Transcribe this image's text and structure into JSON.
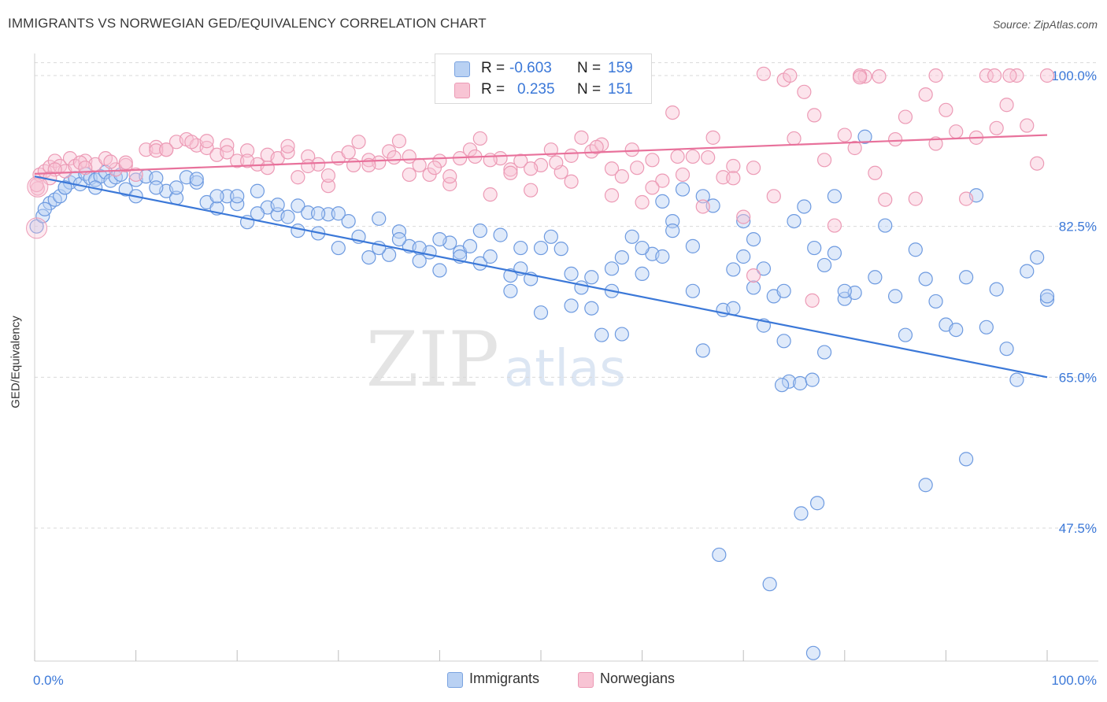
{
  "title": "IMMIGRANTS VS NORWEGIAN GED/EQUIVALENCY CORRELATION CHART",
  "source": "Source: ZipAtlas.com",
  "watermark": {
    "zip": "ZIP",
    "atlas": "atlas"
  },
  "legend": {
    "r_label": "R =",
    "n_label": "N =",
    "rows": [
      {
        "r": "-0.603",
        "n": "159",
        "color": "#3b78d8",
        "fill": "#b9d1f3"
      },
      {
        "r": "0.235",
        "n": "151",
        "color": "#e8719b",
        "fill": "#f8c4d4"
      }
    ]
  },
  "bottom_legend": [
    {
      "label": "Immigrants",
      "fill": "#b9d1f3",
      "stroke": "#7aa3e0"
    },
    {
      "label": "Norwegians",
      "fill": "#f8c4d4",
      "stroke": "#ec9ab5"
    }
  ],
  "chart_data": {
    "type": "scatter",
    "title": "IMMIGRANTS VS NORWEGIAN GED/EQUIVALENCY CORRELATION CHART",
    "xlabel": "",
    "ylabel": "GED/Equivalency",
    "xlim": [
      0,
      100
    ],
    "ylim": [
      31,
      102
    ],
    "x_tick_labels": [
      "0.0%",
      "100.0%"
    ],
    "y_ticks": [
      47.5,
      65.0,
      82.5,
      100.0
    ],
    "y_tick_labels": [
      "47.5%",
      "65.0%",
      "82.5%",
      "100.0%"
    ],
    "grid": "dashed horizontal",
    "legend_position": "top-center",
    "series": [
      {
        "name": "Immigrants",
        "color": "#3b78d8",
        "trend": {
          "x": [
            0,
            100
          ],
          "y": [
            88.3,
            65.0
          ]
        },
        "points": [
          [
            0.2,
            82.5
          ],
          [
            0.8,
            83.7
          ],
          [
            1.5,
            85.2
          ],
          [
            2,
            85.6
          ],
          [
            2.5,
            86
          ],
          [
            3,
            87
          ],
          [
            3.5,
            87.6
          ],
          [
            4,
            88.1
          ],
          [
            4.5,
            87.4
          ],
          [
            5,
            88.6
          ],
          [
            5.5,
            88.1
          ],
          [
            6,
            87.9
          ],
          [
            6.5,
            88.3
          ],
          [
            7,
            88.8
          ],
          [
            7.5,
            87.8
          ],
          [
            8,
            88.2
          ],
          [
            8.5,
            88.5
          ],
          [
            9,
            86.8
          ],
          [
            10,
            87.9
          ],
          [
            11,
            88.3
          ],
          [
            12,
            88.1
          ],
          [
            13,
            86.6
          ],
          [
            14,
            85.8
          ],
          [
            15,
            88.2
          ],
          [
            16,
            87.6
          ],
          [
            17,
            85.3
          ],
          [
            18,
            84.6
          ],
          [
            19,
            86
          ],
          [
            20,
            85.1
          ],
          [
            21,
            83
          ],
          [
            22,
            86.6
          ],
          [
            23,
            84.7
          ],
          [
            24,
            83.9
          ],
          [
            25,
            83.6
          ],
          [
            26,
            84.9
          ],
          [
            27,
            84.1
          ],
          [
            28,
            81.7
          ],
          [
            29,
            83.9
          ],
          [
            30,
            80
          ],
          [
            31,
            83.1
          ],
          [
            32,
            81.3
          ],
          [
            33,
            78.9
          ],
          [
            34,
            83.4
          ],
          [
            35,
            79.2
          ],
          [
            36,
            81.9
          ],
          [
            37,
            80.2
          ],
          [
            38,
            78.5
          ],
          [
            39,
            79.5
          ],
          [
            40,
            77.4
          ],
          [
            41,
            80.6
          ],
          [
            42,
            79.5
          ],
          [
            43,
            80.2
          ],
          [
            44,
            78.2
          ],
          [
            45,
            79
          ],
          [
            46,
            81.5
          ],
          [
            47,
            76.8
          ],
          [
            48,
            77.6
          ],
          [
            49,
            76.4
          ],
          [
            50,
            72.5
          ],
          [
            51,
            81.3
          ],
          [
            52,
            79.9
          ],
          [
            53,
            73.3
          ],
          [
            54,
            75.4
          ],
          [
            55,
            76.6
          ],
          [
            56,
            69.9
          ],
          [
            57,
            77.6
          ],
          [
            58,
            78.9
          ],
          [
            59,
            81.3
          ],
          [
            60,
            77
          ],
          [
            61,
            79.3
          ],
          [
            62,
            85.4
          ],
          [
            63,
            83.1
          ],
          [
            64,
            86.8
          ],
          [
            65,
            80.2
          ],
          [
            66,
            68.1
          ],
          [
            67,
            84.9
          ],
          [
            68,
            72.8
          ],
          [
            69,
            77.5
          ],
          [
            70,
            83.1
          ],
          [
            71,
            75.4
          ],
          [
            72,
            77.6
          ],
          [
            73,
            74.4
          ],
          [
            74,
            69.2
          ],
          [
            75,
            83.1
          ],
          [
            76,
            84.8
          ],
          [
            77,
            80
          ],
          [
            78,
            67.9
          ],
          [
            79,
            79.4
          ],
          [
            80,
            74.1
          ],
          [
            81,
            74.8
          ],
          [
            82,
            92.9
          ],
          [
            83,
            76.6
          ],
          [
            84,
            82.6
          ],
          [
            85,
            74.4
          ],
          [
            86,
            69.9
          ],
          [
            87,
            79.8
          ],
          [
            88,
            76.4
          ],
          [
            89,
            73.8
          ],
          [
            90,
            71.1
          ],
          [
            91,
            70.5
          ],
          [
            92,
            76.6
          ],
          [
            93,
            86.1
          ],
          [
            94,
            70.8
          ],
          [
            95,
            75.2
          ],
          [
            96,
            68.3
          ],
          [
            97,
            64.7
          ],
          [
            98,
            77.3
          ],
          [
            99,
            78.9
          ],
          [
            100,
            74
          ],
          [
            74.5,
            64.5
          ],
          [
            73.8,
            64.1
          ],
          [
            75.6,
            64.3
          ],
          [
            76.8,
            64.7
          ],
          [
            88,
            52.5
          ],
          [
            92,
            55.5
          ],
          [
            75.7,
            49.2
          ],
          [
            77.3,
            50.4
          ],
          [
            67.6,
            44.4
          ],
          [
            72.6,
            41
          ],
          [
            76.9,
            33
          ],
          [
            100,
            74.4
          ],
          [
            78,
            78
          ],
          [
            72,
            71
          ],
          [
            69,
            73
          ],
          [
            60,
            80
          ],
          [
            55,
            73
          ],
          [
            47,
            75
          ],
          [
            42,
            79
          ],
          [
            38,
            80
          ],
          [
            58,
            70
          ],
          [
            63,
            82
          ],
          [
            65,
            75
          ],
          [
            70,
            79
          ],
          [
            50,
            80
          ],
          [
            36,
            81
          ],
          [
            30,
            84
          ],
          [
            26,
            82
          ],
          [
            22,
            84
          ],
          [
            18,
            86
          ],
          [
            14,
            87
          ],
          [
            10,
            86
          ],
          [
            6,
            87
          ],
          [
            3,
            87
          ],
          [
            1,
            84.5
          ],
          [
            79,
            86
          ],
          [
            80,
            75
          ],
          [
            74,
            75
          ],
          [
            71,
            81
          ],
          [
            66,
            86
          ],
          [
            62,
            79
          ],
          [
            57,
            75
          ],
          [
            53,
            77
          ],
          [
            48,
            80
          ],
          [
            44,
            82
          ],
          [
            40,
            81
          ],
          [
            34,
            80
          ],
          [
            28,
            84
          ],
          [
            24,
            85
          ],
          [
            20,
            86
          ],
          [
            16,
            88
          ],
          [
            12,
            87
          ]
        ]
      },
      {
        "name": "Norwegians",
        "color": "#e8719b",
        "trend": {
          "x": [
            0,
            100
          ],
          "y": [
            88.6,
            93.1
          ]
        },
        "points": [
          [
            0.3,
            86.9
          ],
          [
            0.5,
            88.5
          ],
          [
            1,
            88.9
          ],
          [
            1.5,
            89.4
          ],
          [
            2,
            90.1
          ],
          [
            2.5,
            89.5
          ],
          [
            3,
            88.9
          ],
          [
            3.5,
            90.4
          ],
          [
            4,
            89.5
          ],
          [
            5,
            90.1
          ],
          [
            6,
            89.7
          ],
          [
            7,
            90.4
          ],
          [
            8,
            89.1
          ],
          [
            9,
            89.6
          ],
          [
            10,
            88.5
          ],
          [
            11,
            91.4
          ],
          [
            12,
            91.7
          ],
          [
            13,
            91.4
          ],
          [
            14,
            92.3
          ],
          [
            15,
            92.6
          ],
          [
            16,
            91.9
          ],
          [
            17,
            91.6
          ],
          [
            18,
            90.8
          ],
          [
            19,
            91.9
          ],
          [
            20,
            90.1
          ],
          [
            21,
            91.3
          ],
          [
            22,
            89.7
          ],
          [
            23,
            90.8
          ],
          [
            24,
            90.4
          ],
          [
            25,
            91.1
          ],
          [
            26,
            88.2
          ],
          [
            27,
            90.6
          ],
          [
            28,
            89.7
          ],
          [
            29,
            87.2
          ],
          [
            30,
            90.4
          ],
          [
            31,
            91.1
          ],
          [
            32,
            92.3
          ],
          [
            33,
            90.2
          ],
          [
            34,
            89.9
          ],
          [
            35,
            91.2
          ],
          [
            36,
            92.4
          ],
          [
            37,
            90.6
          ],
          [
            38,
            89.6
          ],
          [
            39,
            88.5
          ],
          [
            40,
            90.1
          ],
          [
            41,
            87.4
          ],
          [
            42,
            90.4
          ],
          [
            43,
            91.4
          ],
          [
            44,
            92.7
          ],
          [
            45,
            86.2
          ],
          [
            46,
            90.4
          ],
          [
            47,
            89.1
          ],
          [
            48,
            90.1
          ],
          [
            49,
            86.7
          ],
          [
            50,
            89.6
          ],
          [
            51,
            91.4
          ],
          [
            52,
            88.8
          ],
          [
            53,
            90.7
          ],
          [
            54,
            92.8
          ],
          [
            55,
            91.2
          ],
          [
            56,
            92
          ],
          [
            57,
            89.2
          ],
          [
            58,
            88.3
          ],
          [
            59,
            91.4
          ],
          [
            60,
            85.3
          ],
          [
            61,
            90.2
          ],
          [
            62,
            87.8
          ],
          [
            63,
            95.7
          ],
          [
            64,
            88.5
          ],
          [
            65,
            90.6
          ],
          [
            66,
            84.8
          ],
          [
            67,
            92.8
          ],
          [
            68,
            88.2
          ],
          [
            69,
            89.5
          ],
          [
            70,
            83.6
          ],
          [
            71,
            76.8
          ],
          [
            72,
            100.2
          ],
          [
            73,
            86
          ],
          [
            74,
            99.5
          ],
          [
            75,
            92.7
          ],
          [
            76,
            98.1
          ],
          [
            77,
            95.4
          ],
          [
            78,
            90.2
          ],
          [
            79,
            82.6
          ],
          [
            80,
            93.1
          ],
          [
            81,
            91.6
          ],
          [
            82,
            99.9
          ],
          [
            83,
            88.7
          ],
          [
            84,
            85.6
          ],
          [
            85,
            92.6
          ],
          [
            86,
            95.2
          ],
          [
            87,
            85.7
          ],
          [
            88,
            97.8
          ],
          [
            89,
            92.1
          ],
          [
            90,
            96
          ],
          [
            91,
            93.5
          ],
          [
            92,
            85.7
          ],
          [
            93,
            92.8
          ],
          [
            94,
            100
          ],
          [
            95,
            93.9
          ],
          [
            96,
            96.6
          ],
          [
            97,
            100
          ],
          [
            98,
            94.2
          ],
          [
            99,
            89.8
          ],
          [
            100,
            100
          ],
          [
            74.6,
            100
          ],
          [
            81.5,
            100
          ],
          [
            89,
            100
          ],
          [
            94.8,
            100
          ],
          [
            81.5,
            99.8
          ],
          [
            96.3,
            100
          ],
          [
            83.4,
            99.9
          ],
          [
            0.2,
            87.3
          ],
          [
            76.8,
            73.9
          ],
          [
            2,
            89.1
          ],
          [
            4.5,
            89.9
          ],
          [
            7.5,
            90
          ],
          [
            12,
            91.3
          ],
          [
            15.5,
            92.3
          ],
          [
            19,
            91.1
          ],
          [
            23,
            89.3
          ],
          [
            27,
            89.5
          ],
          [
            31.5,
            89.6
          ],
          [
            35.5,
            90.5
          ],
          [
            39.5,
            89.3
          ],
          [
            43.5,
            90.6
          ],
          [
            47,
            88.7
          ],
          [
            51.5,
            89.9
          ],
          [
            55.5,
            91.7
          ],
          [
            59.5,
            89.3
          ],
          [
            63.5,
            90.6
          ],
          [
            66.5,
            90.5
          ],
          [
            71,
            89.3
          ],
          [
            69,
            88.1
          ],
          [
            61,
            87
          ],
          [
            57,
            86.1
          ],
          [
            53,
            87.7
          ],
          [
            49,
            89.2
          ],
          [
            45,
            90.2
          ],
          [
            41,
            88.3
          ],
          [
            37,
            88.5
          ],
          [
            33,
            89.6
          ],
          [
            29,
            88.4
          ],
          [
            25,
            91.8
          ],
          [
            21,
            90.1
          ],
          [
            17,
            92.4
          ],
          [
            13,
            91.4
          ],
          [
            9,
            89.9
          ],
          [
            5,
            89.3
          ],
          [
            1.5,
            88.1
          ]
        ]
      }
    ]
  }
}
